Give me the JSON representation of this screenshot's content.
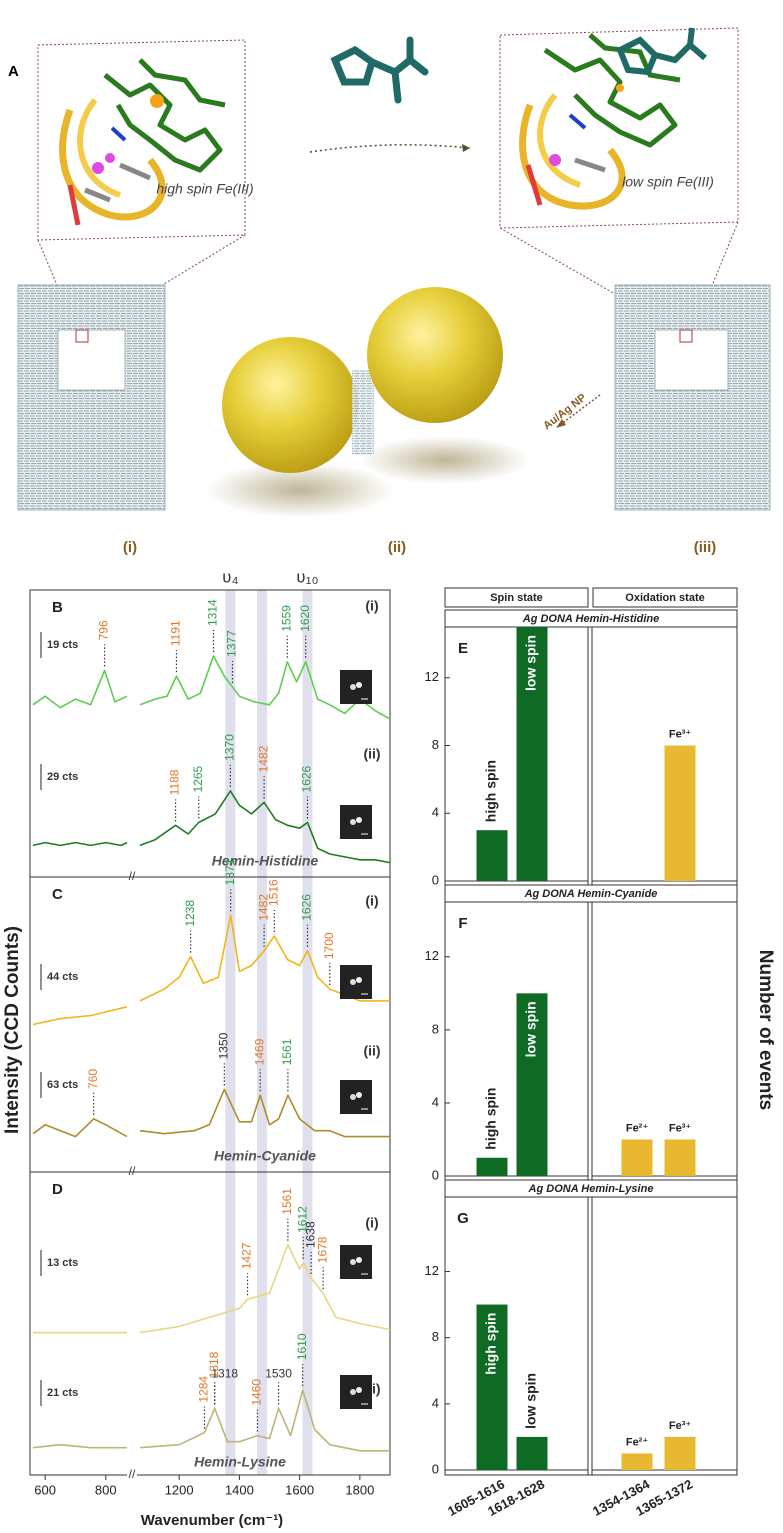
{
  "panel_a": {
    "label": "A",
    "left_state": "high spin Fe(III)",
    "right_state": "low spin Fe(III)",
    "arrow_label": "Au/Ag NP",
    "steps": [
      "(i)",
      "(ii)",
      "(iii)"
    ]
  },
  "chart_data": [
    {
      "type": "line",
      "ylabel": "Intensity (CCD Counts)",
      "xlabel": "Wavenumber (cm⁻¹)",
      "xlim": [
        550,
        1900
      ],
      "xbreak": [
        870,
        1060
      ],
      "xticks": [
        600,
        800,
        1200,
        1400,
        1600,
        1800
      ],
      "bands": [
        {
          "label": "ʋ₄",
          "x": 1370
        },
        {
          "x": 1475
        },
        {
          "label": "ʋ₁₀",
          "x": 1626
        }
      ],
      "panels": [
        {
          "label": "B",
          "name": "Hemin-Histidine",
          "ylim": [
            0,
            100
          ],
          "series": [
            {
              "name": "(i)",
              "scale": "19 cts",
              "color": "#5ccf4f",
              "x": [
                560,
                600,
                650,
                700,
                750,
                796,
                830,
                870,
                1070,
                1120,
                1160,
                1191,
                1230,
                1270,
                1314,
                1350,
                1400,
                1450,
                1500,
                1530,
                1559,
                1590,
                1620,
                1660,
                1700,
                1750,
                1800,
                1850,
                1900
              ],
              "values": [
                60,
                63,
                59,
                62,
                60,
                72,
                61,
                63,
                60,
                62,
                63,
                70,
                62,
                64,
                77,
                70,
                63,
                61,
                60,
                64,
                75,
                68,
                75,
                62,
                60,
                57,
                62,
                58,
                55
              ],
              "peaks": [
                {
                  "x": 796,
                  "color": "#e0782a"
                },
                {
                  "x": 1191,
                  "color": "#e0782a"
                },
                {
                  "x": 1314,
                  "color": "#2f9e48"
                },
                {
                  "x": 1377,
                  "color": "#2f9e48"
                },
                {
                  "x": 1559,
                  "color": "#2f9e48"
                },
                {
                  "x": 1620,
                  "color": "#2f9e48"
                }
              ]
            },
            {
              "name": "(ii)",
              "scale": "29 cts",
              "color": "#1f7d1f",
              "x": [
                560,
                600,
                650,
                700,
                750,
                800,
                850,
                870,
                1070,
                1120,
                1188,
                1230,
                1265,
                1320,
                1370,
                1400,
                1440,
                1482,
                1520,
                1560,
                1600,
                1626,
                1660,
                1700,
                1750,
                1800,
                1850,
                1900
              ],
              "values": [
                11,
                12,
                11,
                12,
                11,
                12,
                11,
                12,
                11,
                13,
                18,
                15,
                19,
                22,
                30,
                25,
                22,
                26,
                20,
                18,
                17,
                19,
                10,
                8,
                7,
                6,
                6,
                5
              ],
              "peaks": [
                {
                  "x": 1188,
                  "color": "#e0782a"
                },
                {
                  "x": 1265,
                  "color": "#2f9e48"
                },
                {
                  "x": 1370,
                  "color": "#2f9e48"
                },
                {
                  "x": 1482,
                  "color": "#e0782a"
                },
                {
                  "x": 1626,
                  "color": "#2f9e48"
                }
              ]
            }
          ]
        },
        {
          "label": "C",
          "name": "Hemin-Cyanide",
          "ylim": [
            0,
            100
          ],
          "series": [
            {
              "name": "(i)",
              "scale": "44 cts",
              "color": "#f2b51c",
              "x": [
                560,
                650,
                750,
                870,
                1070,
                1150,
                1200,
                1238,
                1280,
                1330,
                1371,
                1400,
                1440,
                1482,
                1516,
                1560,
                1600,
                1626,
                1660,
                1700,
                1750,
                1800,
                1900
              ],
              "values": [
                50,
                52,
                53,
                56,
                58,
                62,
                66,
                73,
                64,
                66,
                87,
                68,
                70,
                75,
                80,
                72,
                70,
                75,
                66,
                62,
                60,
                58,
                58
              ],
              "peaks": [
                {
                  "x": 1238,
                  "color": "#2f9e48"
                },
                {
                  "x": 1371,
                  "color": "#2f9e48"
                },
                {
                  "x": 1482,
                  "color": "#e0782a"
                },
                {
                  "x": 1516,
                  "color": "#e0782a"
                },
                {
                  "x": 1626,
                  "color": "#2f9e48"
                },
                {
                  "x": 1700,
                  "color": "#e0782a"
                }
              ]
            },
            {
              "name": "(ii)",
              "scale": "63 cts",
              "color": "#b08b2e",
              "x": [
                560,
                600,
                700,
                760,
                800,
                870,
                1070,
                1150,
                1250,
                1300,
                1350,
                1400,
                1440,
                1469,
                1500,
                1530,
                1561,
                1600,
                1650,
                1700,
                1750,
                1800,
                1900
              ],
              "values": [
                13,
                16,
                12,
                18,
                16,
                12,
                14,
                13,
                14,
                16,
                28,
                17,
                17,
                26,
                16,
                18,
                26,
                18,
                14,
                14,
                12,
                12,
                12
              ],
              "peaks": [
                {
                  "x": 760,
                  "color": "#e0782a"
                },
                {
                  "x": 1350,
                  "color": "#333333"
                },
                {
                  "x": 1469,
                  "color": "#e0782a"
                },
                {
                  "x": 1561,
                  "color": "#2f9e48"
                }
              ]
            }
          ]
        },
        {
          "label": "D",
          "name": "Hemin-Lysine",
          "ylim": [
            0,
            100
          ],
          "series": [
            {
              "name": "(i)",
              "scale": "13 cts",
              "color": "#e9d682",
              "x": [
                560,
                700,
                870,
                1070,
                1200,
                1300,
                1400,
                1427,
                1500,
                1561,
                1600,
                1612,
                1638,
                1678,
                1720,
                1800,
                1900
              ],
              "values": [
                47,
                47,
                47,
                47,
                49,
                52,
                55,
                58,
                60,
                76,
                68,
                70,
                65,
                60,
                52,
                50,
                48
              ],
              "peaks": [
                {
                  "x": 1427,
                  "color": "#e0782a"
                },
                {
                  "x": 1561,
                  "color": "#e0782a"
                },
                {
                  "x": 1612,
                  "color": "#2f9e48"
                },
                {
                  "x": 1638,
                  "color": "#333333"
                },
                {
                  "x": 1678,
                  "color": "#e0782a"
                }
              ]
            },
            {
              "name": "(ii)",
              "scale": "21 cts",
              "color": "#bdb475",
              "x": [
                560,
                650,
                750,
                870,
                1070,
                1200,
                1284,
                1318,
                1360,
                1400,
                1460,
                1500,
                1530,
                1570,
                1610,
                1650,
                1700,
                1800,
                1900
              ],
              "values": [
                9,
                10,
                9,
                9,
                9,
                10,
                14,
                22,
                11,
                11,
                13,
                12,
                22,
                13,
                28,
                15,
                10,
                8,
                8
              ],
              "peaks": [
                {
                  "x": 1284,
                  "color": "#e0782a"
                },
                {
                  "x": 1318,
                  "color": "#e0782a"
                },
                {
                  "x": 1318,
                  "color": "#333333",
                  "rotated": false
                },
                {
                  "x": 1460,
                  "color": "#e0782a"
                },
                {
                  "x": 1530,
                  "color": "#333333",
                  "rotated": false
                },
                {
                  "x": 1610,
                  "color": "#2f9e48"
                }
              ]
            }
          ]
        }
      ]
    },
    {
      "type": "bar",
      "ylabel": "Number of events",
      "groups": [
        "Spin state",
        "Oxidation state"
      ],
      "categories": [
        "1605-1616",
        "1618-1628",
        "1354-1364",
        "1365-1372"
      ],
      "colors": [
        "#0f6b24",
        "#0f6b24",
        "#e8b830",
        "#e8b830"
      ],
      "panels": [
        {
          "label": "E",
          "title": "Ag DONA Hemin-Histidine",
          "ylim": [
            0,
            15
          ],
          "yticks": [
            0,
            4,
            8,
            12
          ],
          "values": [
            3,
            15,
            null,
            8
          ],
          "bar_labels": [
            "high spin",
            "low spin",
            null,
            "Fe³⁺"
          ]
        },
        {
          "label": "F",
          "title": "Ag DONA Hemin-Cyanide",
          "ylim": [
            0,
            15
          ],
          "yticks": [
            0,
            4,
            8,
            12
          ],
          "values": [
            1,
            10,
            2,
            2
          ],
          "bar_labels": [
            "high spin",
            "low spin",
            "Fe²⁺",
            "Fe³⁺"
          ]
        },
        {
          "label": "G",
          "title": "Ag DONA Hemin-Lysine",
          "ylim": [
            0,
            16.5
          ],
          "yticks": [
            0,
            4,
            8,
            12
          ],
          "values": [
            10,
            2,
            1,
            2
          ],
          "bar_labels": [
            "high spin",
            "low spin",
            "Fe²⁺",
            "Fe³⁺"
          ]
        }
      ]
    }
  ]
}
